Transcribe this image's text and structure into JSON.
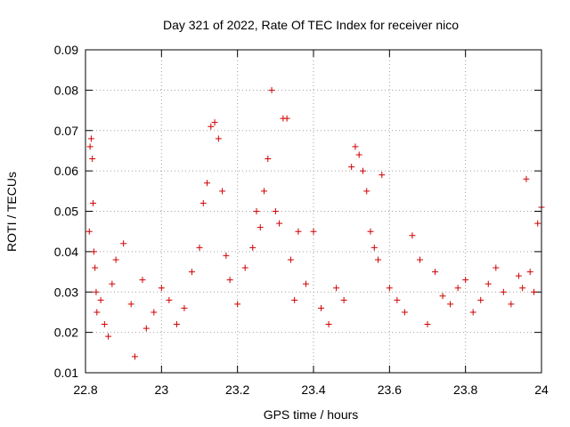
{
  "chart_data": {
    "type": "scatter",
    "title": "Day 321 of 2022, Rate Of TEC Index for receiver nico",
    "xlabel": "GPS time / hours",
    "ylabel": "ROTI / TECUs",
    "xlim": [
      22.8,
      24.0
    ],
    "ylim": [
      0.01,
      0.09
    ],
    "x_ticks": [
      "22.8",
      "23",
      "23.2",
      "23.4",
      "23.6",
      "23.8",
      "24"
    ],
    "y_ticks": [
      "0.01",
      "0.02",
      "0.03",
      "0.04",
      "0.05",
      "0.06",
      "0.07",
      "0.08",
      "0.09"
    ],
    "grid": true,
    "marker": "plus",
    "color": "#d00000",
    "series": [
      {
        "x": [
          22.81,
          22.812,
          22.815,
          22.818,
          22.82,
          22.822,
          22.825,
          22.828,
          22.83,
          22.84,
          22.85,
          22.86,
          22.87,
          22.88,
          22.9,
          22.92,
          22.93,
          22.95,
          22.96,
          22.98,
          23.0,
          23.02,
          23.04,
          23.06,
          23.08,
          23.1,
          23.11,
          23.12,
          23.13,
          23.14,
          23.15,
          23.16,
          23.17,
          23.18,
          23.2,
          23.22,
          23.24,
          23.25,
          23.26,
          23.27,
          23.28,
          23.29,
          23.3,
          23.31,
          23.32,
          23.33,
          23.34,
          23.35,
          23.36,
          23.38,
          23.4,
          23.42,
          23.44,
          23.46,
          23.48,
          23.5,
          23.51,
          23.52,
          23.53,
          23.54,
          23.55,
          23.56,
          23.57,
          23.58,
          23.6,
          23.62,
          23.64,
          23.66,
          23.68,
          23.7,
          23.72,
          23.74,
          23.76,
          23.78,
          23.8,
          23.82,
          23.84,
          23.86,
          23.88,
          23.9,
          23.92,
          23.94,
          23.95,
          23.96,
          23.97,
          23.98,
          23.99,
          24.0
        ],
        "y": [
          0.045,
          0.066,
          0.068,
          0.063,
          0.052,
          0.04,
          0.036,
          0.03,
          0.025,
          0.028,
          0.022,
          0.019,
          0.032,
          0.038,
          0.042,
          0.027,
          0.014,
          0.033,
          0.021,
          0.025,
          0.031,
          0.028,
          0.022,
          0.026,
          0.035,
          0.041,
          0.052,
          0.057,
          0.071,
          0.072,
          0.068,
          0.055,
          0.039,
          0.033,
          0.027,
          0.036,
          0.041,
          0.05,
          0.046,
          0.055,
          0.063,
          0.08,
          0.05,
          0.047,
          0.073,
          0.073,
          0.038,
          0.028,
          0.045,
          0.032,
          0.045,
          0.026,
          0.022,
          0.031,
          0.028,
          0.061,
          0.066,
          0.064,
          0.06,
          0.055,
          0.045,
          0.041,
          0.038,
          0.059,
          0.031,
          0.028,
          0.025,
          0.044,
          0.038,
          0.022,
          0.035,
          0.029,
          0.027,
          0.031,
          0.033,
          0.025,
          0.028,
          0.032,
          0.036,
          0.03,
          0.027,
          0.034,
          0.031,
          0.058,
          0.035,
          0.03,
          0.047,
          0.051
        ]
      }
    ]
  }
}
